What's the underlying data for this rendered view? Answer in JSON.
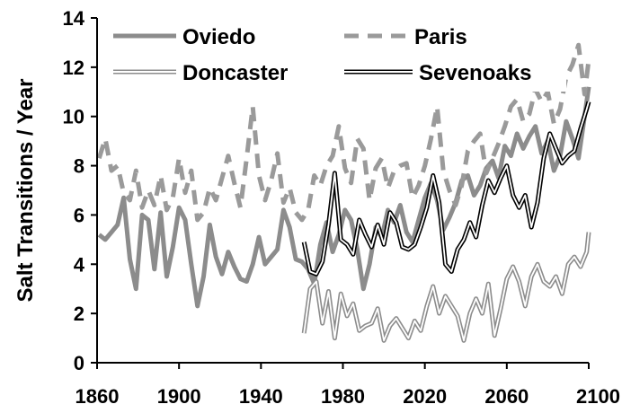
{
  "chart_data": {
    "type": "line",
    "title": "",
    "xlabel": "",
    "ylabel": "Salt Transitions / Year",
    "xlim": [
      1860,
      2100
    ],
    "ylim": [
      0,
      14
    ],
    "xticks": [
      "1860",
      "1900",
      "1940",
      "1980",
      "2020",
      "2060",
      "2100"
    ],
    "yticks": [
      "0",
      "2",
      "4",
      "6",
      "8",
      "10",
      "12",
      "14"
    ],
    "grid": false,
    "legend": "top, two columns",
    "series": [
      {
        "name": "Oviedo",
        "color": "#8c8c8c",
        "style": "solid-thick",
        "x": [
          1861,
          1864,
          1867,
          1870,
          1873,
          1876,
          1879,
          1882,
          1885,
          1888,
          1891,
          1894,
          1897,
          1900,
          1903,
          1906,
          1909,
          1912,
          1915,
          1918,
          1921,
          1924,
          1927,
          1930,
          1933,
          1936,
          1939,
          1942,
          1945,
          1948,
          1951,
          1954,
          1957,
          1960,
          1963,
          1966,
          1969,
          1972,
          1975,
          1978,
          1981,
          1984,
          1987,
          1990,
          1993,
          1996,
          1999,
          2002,
          2005,
          2008,
          2011,
          2014,
          2017,
          2020,
          2023,
          2026,
          2029,
          2032,
          2035,
          2038,
          2041,
          2044,
          2047,
          2050,
          2053,
          2056,
          2059,
          2062,
          2065,
          2068,
          2071,
          2074,
          2077,
          2080,
          2083,
          2086,
          2089,
          2092,
          2095,
          2098,
          2100
        ],
        "y": [
          5.2,
          5.0,
          5.3,
          5.6,
          6.7,
          4.2,
          3.0,
          6.0,
          5.8,
          3.8,
          6.1,
          3.5,
          4.7,
          6.3,
          5.8,
          4.0,
          2.3,
          3.5,
          5.6,
          4.3,
          3.6,
          4.5,
          3.9,
          3.4,
          3.3,
          4.0,
          5.1,
          4.0,
          4.3,
          4.6,
          6.2,
          5.5,
          4.2,
          4.1,
          3.8,
          3.2,
          4.8,
          5.7,
          4.5,
          5.2,
          6.2,
          5.8,
          4.6,
          3.0,
          4.0,
          5.5,
          5.1,
          6.2,
          5.7,
          6.4,
          5.3,
          4.9,
          5.8,
          6.7,
          7.3,
          6.6,
          5.4,
          5.9,
          6.5,
          7.4,
          7.6,
          6.8,
          7.2,
          7.9,
          8.2,
          7.5,
          8.8,
          8.4,
          9.3,
          8.7,
          9.2,
          9.6,
          8.5,
          9.0,
          7.8,
          8.4,
          9.8,
          9.1,
          8.3,
          10.0,
          11.2
        ]
      },
      {
        "name": "Paris",
        "color": "#9a9a9a",
        "style": "dashed-thick",
        "x": [
          1861,
          1864,
          1867,
          1870,
          1873,
          1876,
          1879,
          1882,
          1885,
          1888,
          1891,
          1894,
          1897,
          1900,
          1903,
          1906,
          1909,
          1912,
          1915,
          1918,
          1921,
          1924,
          1927,
          1930,
          1933,
          1936,
          1939,
          1942,
          1945,
          1948,
          1951,
          1954,
          1957,
          1960,
          1963,
          1966,
          1969,
          1972,
          1975,
          1978,
          1981,
          1984,
          1987,
          1990,
          1993,
          1996,
          1999,
          2002,
          2005,
          2008,
          2011,
          2014,
          2017,
          2020,
          2023,
          2026,
          2029,
          2032,
          2035,
          2038,
          2041,
          2044,
          2047,
          2050,
          2053,
          2056,
          2059,
          2062,
          2065,
          2068,
          2071,
          2074,
          2077,
          2080,
          2083,
          2086,
          2089,
          2092,
          2095,
          2098,
          2100
        ],
        "y": [
          8.3,
          9.1,
          7.8,
          8.0,
          6.9,
          6.6,
          7.8,
          6.3,
          7.0,
          6.4,
          7.6,
          6.2,
          6.7,
          8.3,
          6.9,
          7.8,
          5.8,
          6.1,
          7.1,
          6.6,
          7.5,
          8.4,
          7.3,
          6.3,
          8.3,
          10.4,
          7.6,
          6.6,
          7.4,
          8.5,
          6.5,
          7.1,
          6.1,
          5.8,
          6.2,
          7.6,
          7.2,
          8.0,
          8.4,
          9.6,
          7.9,
          7.3,
          9.1,
          8.7,
          6.6,
          7.9,
          8.3,
          7.1,
          7.8,
          8.0,
          8.1,
          6.7,
          7.2,
          8.0,
          9.1,
          10.4,
          7.8,
          7.0,
          6.4,
          7.2,
          8.6,
          9.0,
          9.3,
          7.7,
          8.3,
          8.9,
          9.6,
          10.4,
          10.7,
          9.8,
          10.1,
          11.1,
          10.6,
          11.0,
          9.7,
          10.3,
          11.6,
          12.1,
          12.9,
          10.9,
          12.3
        ]
      },
      {
        "name": "Doncaster",
        "color": "#8c8c8c",
        "style": "double-line",
        "x": [
          1961,
          1964,
          1967,
          1970,
          1973,
          1976,
          1979,
          1982,
          1985,
          1988,
          1991,
          1994,
          1997,
          2000,
          2003,
          2006,
          2009,
          2012,
          2015,
          2018,
          2021,
          2024,
          2027,
          2030,
          2033,
          2036,
          2039,
          2042,
          2045,
          2048,
          2051,
          2054,
          2057,
          2060,
          2063,
          2066,
          2069,
          2072,
          2075,
          2078,
          2081,
          2084,
          2087,
          2090,
          2093,
          2096,
          2099,
          2100
        ],
        "y": [
          1.2,
          3.0,
          3.3,
          1.6,
          2.9,
          1.0,
          2.8,
          1.9,
          2.4,
          1.3,
          1.5,
          1.6,
          2.2,
          0.9,
          1.5,
          1.8,
          1.4,
          1.0,
          1.7,
          1.3,
          2.3,
          3.1,
          2.0,
          2.7,
          2.3,
          1.9,
          0.9,
          2.0,
          2.6,
          2.0,
          3.2,
          1.1,
          2.2,
          3.4,
          3.9,
          3.3,
          2.3,
          3.5,
          4.0,
          3.3,
          3.1,
          3.5,
          2.8,
          4.0,
          4.3,
          3.9,
          4.5,
          5.3
        ]
      },
      {
        "name": "Sevenoaks",
        "color": "#000000",
        "style": "double-line",
        "x": [
          1961,
          1964,
          1967,
          1970,
          1973,
          1976,
          1979,
          1982,
          1985,
          1988,
          1991,
          1994,
          1997,
          2000,
          2003,
          2006,
          2009,
          2012,
          2015,
          2018,
          2021,
          2024,
          2027,
          2030,
          2033,
          2036,
          2039,
          2042,
          2045,
          2048,
          2051,
          2054,
          2057,
          2060,
          2063,
          2066,
          2069,
          2072,
          2075,
          2078,
          2081,
          2084,
          2087,
          2090,
          2093,
          2096,
          2099,
          2100
        ],
        "y": [
          4.9,
          3.7,
          3.6,
          4.1,
          5.6,
          7.7,
          5.0,
          4.8,
          4.4,
          5.8,
          5.2,
          4.7,
          5.6,
          4.8,
          6.1,
          5.7,
          4.7,
          4.6,
          4.8,
          5.5,
          6.3,
          7.6,
          6.5,
          4.0,
          3.7,
          4.6,
          5.0,
          5.7,
          5.1,
          6.4,
          7.4,
          6.9,
          7.5,
          8.0,
          6.8,
          6.3,
          6.8,
          5.5,
          6.5,
          8.3,
          9.3,
          8.7,
          8.1,
          8.4,
          8.6,
          9.5,
          10.3,
          10.6
        ]
      }
    ]
  }
}
